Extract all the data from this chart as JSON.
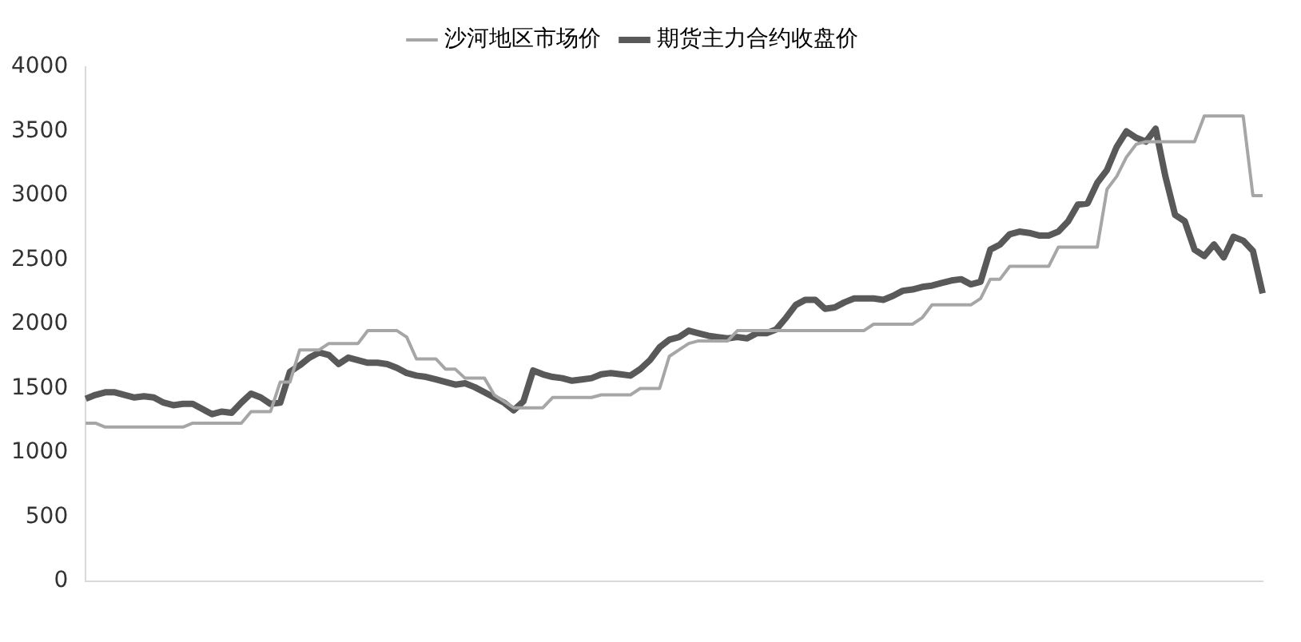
{
  "chart_data": {
    "type": "line",
    "categories": [
      null,
      null,
      null,
      null,
      null,
      null,
      null,
      null,
      null,
      null,
      null,
      null,
      null,
      null,
      null,
      null,
      null,
      null,
      null,
      null,
      null,
      null,
      null,
      null,
      null,
      null,
      null,
      null,
      null,
      null,
      null,
      null,
      null,
      null,
      null,
      null,
      null,
      null,
      null,
      null,
      null,
      null,
      null,
      null,
      null,
      null,
      null,
      null,
      null,
      null,
      null,
      null,
      null,
      null,
      null,
      null,
      null,
      null,
      null,
      null,
      null,
      null,
      null,
      null,
      null,
      null,
      null,
      null,
      null,
      null,
      null,
      null,
      null,
      null,
      null,
      null,
      null,
      null,
      null,
      null,
      null,
      null,
      null,
      null,
      null,
      null,
      null,
      null,
      null,
      null,
      null,
      null,
      null,
      null,
      null,
      null,
      null,
      null,
      null,
      null,
      null,
      null,
      null,
      null,
      null,
      null,
      null,
      null,
      null,
      null,
      null,
      null,
      null,
      null,
      null,
      null,
      null,
      null,
      null,
      null,
      null,
      null
    ],
    "series": [
      {
        "name": "沙河地区市场价",
        "color": "#a6a6a6",
        "values": [
          1230,
          1230,
          1200,
          1200,
          1200,
          1200,
          1200,
          1200,
          1200,
          1200,
          1200,
          1230,
          1230,
          1230,
          1230,
          1230,
          1230,
          1320,
          1320,
          1320,
          1550,
          1550,
          1800,
          1800,
          1800,
          1850,
          1850,
          1850,
          1850,
          1950,
          1950,
          1950,
          1950,
          1900,
          1730,
          1730,
          1730,
          1650,
          1650,
          1580,
          1580,
          1580,
          1450,
          1400,
          1350,
          1350,
          1350,
          1350,
          1430,
          1430,
          1430,
          1430,
          1430,
          1450,
          1450,
          1450,
          1450,
          1500,
          1500,
          1500,
          1750,
          1800,
          1850,
          1870,
          1870,
          1870,
          1870,
          1950,
          1950,
          1950,
          1950,
          1950,
          1950,
          1950,
          1950,
          1950,
          1950,
          1950,
          1950,
          1950,
          1950,
          2000,
          2000,
          2000,
          2000,
          2000,
          2050,
          2150,
          2150,
          2150,
          2150,
          2150,
          2200,
          2350,
          2350,
          2450,
          2450,
          2450,
          2450,
          2450,
          2600,
          2600,
          2600,
          2600,
          2600,
          3050,
          3150,
          3300,
          3400,
          3420,
          3420,
          3420,
          3420,
          3420,
          3420,
          3620,
          3620,
          3620,
          3620,
          3620,
          3000,
          3000
        ]
      },
      {
        "name": "期货主力合约收盘价",
        "color": "#595959",
        "values": [
          1420,
          1450,
          1470,
          1470,
          1450,
          1430,
          1440,
          1430,
          1390,
          1370,
          1380,
          1380,
          1340,
          1300,
          1320,
          1310,
          1390,
          1460,
          1430,
          1380,
          1390,
          1630,
          1680,
          1740,
          1780,
          1760,
          1690,
          1740,
          1720,
          1700,
          1700,
          1690,
          1660,
          1620,
          1600,
          1590,
          1570,
          1550,
          1530,
          1540,
          1510,
          1470,
          1430,
          1390,
          1330,
          1400,
          1640,
          1610,
          1590,
          1580,
          1560,
          1570,
          1580,
          1610,
          1620,
          1610,
          1600,
          1650,
          1720,
          1820,
          1880,
          1900,
          1950,
          1930,
          1910,
          1900,
          1890,
          1900,
          1890,
          1930,
          1930,
          1960,
          2050,
          2150,
          2190,
          2190,
          2120,
          2130,
          2170,
          2200,
          2200,
          2200,
          2190,
          2220,
          2260,
          2270,
          2290,
          2300,
          2320,
          2340,
          2350,
          2310,
          2330,
          2580,
          2620,
          2700,
          2720,
          2710,
          2690,
          2690,
          2720,
          2800,
          2930,
          2940,
          3100,
          3200,
          3380,
          3500,
          3450,
          3420,
          3520,
          3150,
          2850,
          2800,
          2580,
          2530,
          2620,
          2520,
          2680,
          2650,
          2570,
          2240
        ]
      }
    ],
    "ylim": [
      0,
      4000
    ],
    "yticks": [
      0,
      500,
      1000,
      1500,
      2000,
      2500,
      3000,
      3500,
      4000
    ],
    "grid": false,
    "legend": "top",
    "tick_labels": "y",
    "marker": "none",
    "line_style": "solid"
  }
}
